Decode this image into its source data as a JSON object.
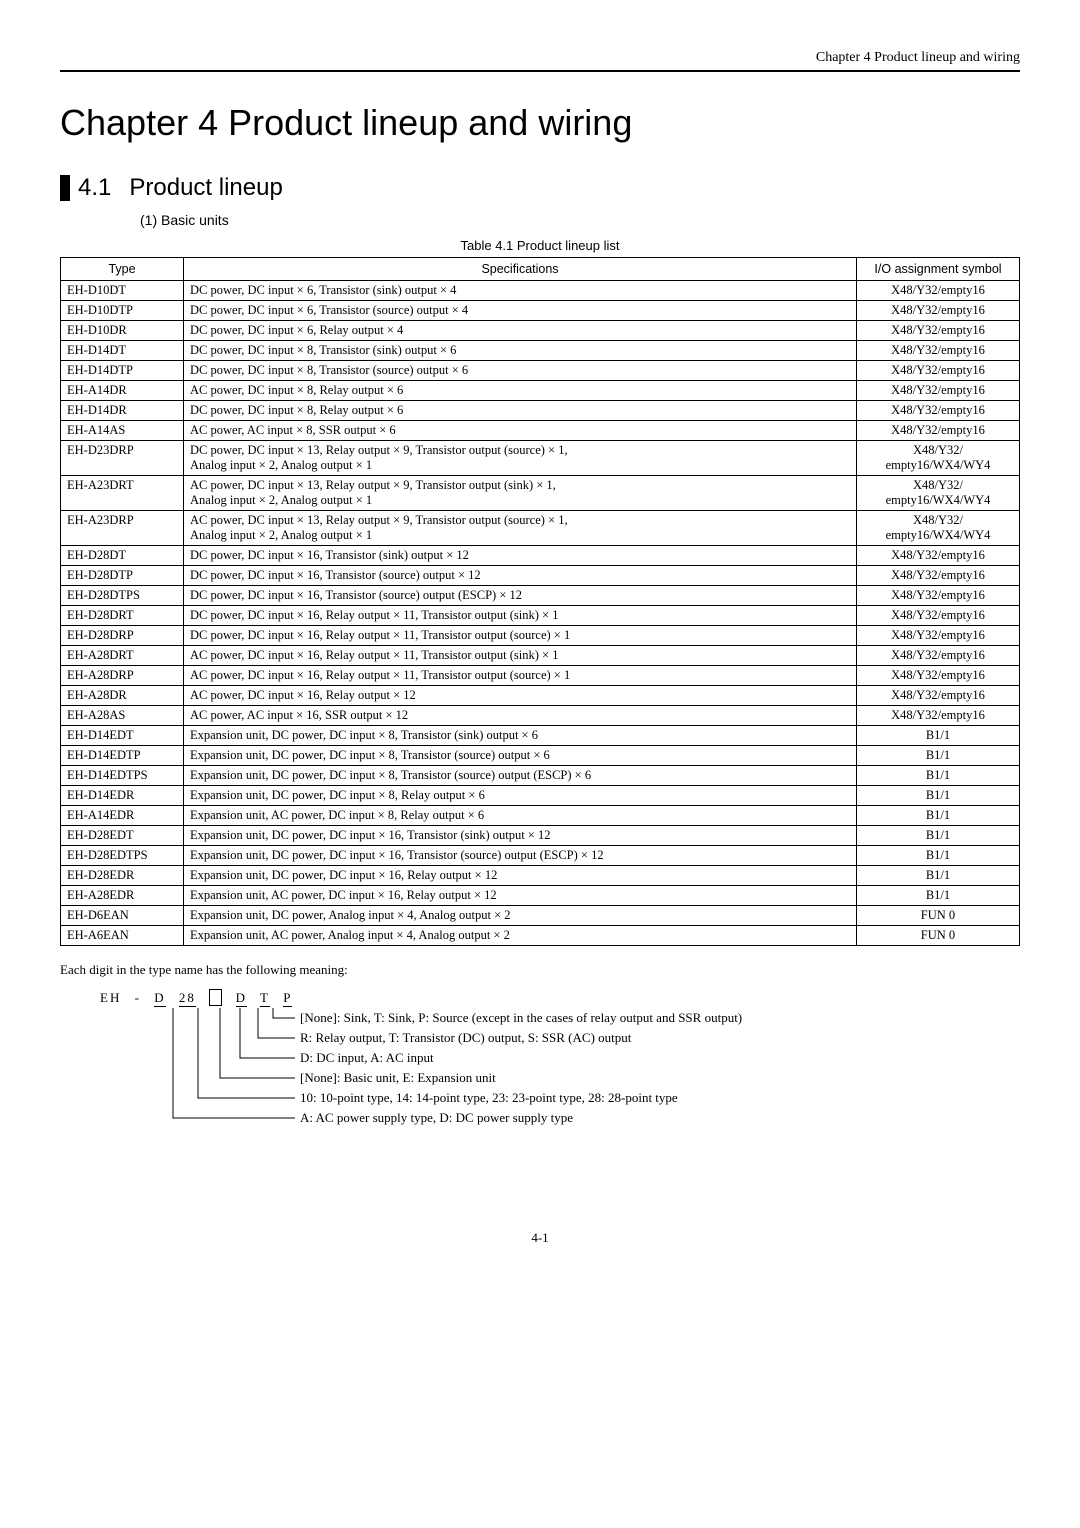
{
  "header": "Chapter 4  Product lineup and wiring",
  "chapter_title": "Chapter 4    Product lineup and wiring",
  "section": {
    "num": "4.1",
    "title": "Product lineup"
  },
  "subsection": "(1)   Basic units",
  "table_caption": "Table 4.1 Product lineup list",
  "table": {
    "headers": [
      "Type",
      "Specifications",
      "I/O assignment symbol"
    ],
    "rows": [
      [
        "EH-D10DT",
        "DC power, DC input × 6, Transistor (sink) output × 4",
        "X48/Y32/empty16"
      ],
      [
        "EH-D10DTP",
        "DC power, DC input × 6, Transistor (source) output × 4",
        "X48/Y32/empty16"
      ],
      [
        "EH-D10DR",
        "DC power, DC input × 6, Relay output × 4",
        "X48/Y32/empty16"
      ],
      [
        "EH-D14DT",
        "DC power, DC input × 8, Transistor (sink) output × 6",
        "X48/Y32/empty16"
      ],
      [
        "EH-D14DTP",
        "DC power, DC input × 8, Transistor (source) output × 6",
        "X48/Y32/empty16"
      ],
      [
        "EH-A14DR",
        "AC power, DC input × 8, Relay output × 6",
        "X48/Y32/empty16"
      ],
      [
        "EH-D14DR",
        "DC power, DC input × 8, Relay output × 6",
        "X48/Y32/empty16"
      ],
      [
        "EH-A14AS",
        "AC power, AC input × 8, SSR output × 6",
        "X48/Y32/empty16"
      ],
      [
        "EH-D23DRP",
        "DC power, DC input × 13, Relay output × 9, Transistor output (source) × 1,\nAnalog input × 2, Analog output × 1",
        "X48/Y32/\nempty16/WX4/WY4"
      ],
      [
        "EH-A23DRT",
        "AC power, DC input × 13, Relay output × 9, Transistor output (sink) × 1,\nAnalog input × 2, Analog output × 1",
        "X48/Y32/\nempty16/WX4/WY4"
      ],
      [
        "EH-A23DRP",
        "AC power, DC input × 13, Relay output × 9, Transistor output (source) × 1,\nAnalog input × 2, Analog output × 1",
        "X48/Y32/\nempty16/WX4/WY4"
      ],
      [
        "EH-D28DT",
        "DC power, DC input × 16, Transistor (sink) output × 12",
        "X48/Y32/empty16"
      ],
      [
        "EH-D28DTP",
        "DC power, DC input × 16, Transistor (source) output × 12",
        "X48/Y32/empty16"
      ],
      [
        "EH-D28DTPS",
        "DC power, DC input × 16, Transistor (source) output (ESCP) × 12",
        "X48/Y32/empty16"
      ],
      [
        "EH-D28DRT",
        "DC power, DC input × 16, Relay output × 11, Transistor output (sink) × 1",
        "X48/Y32/empty16"
      ],
      [
        "EH-D28DRP",
        "DC power, DC input × 16, Relay output × 11, Transistor output (source) × 1",
        "X48/Y32/empty16"
      ],
      [
        "EH-A28DRT",
        "AC power, DC input × 16, Relay output × 11, Transistor output (sink) × 1",
        "X48/Y32/empty16"
      ],
      [
        "EH-A28DRP",
        "AC power, DC input × 16, Relay output × 11, Transistor output (source) × 1",
        "X48/Y32/empty16"
      ],
      [
        "EH-A28DR",
        "AC power, DC input × 16, Relay output × 12",
        "X48/Y32/empty16"
      ],
      [
        "EH-A28AS",
        "AC power, AC input × 16, SSR output × 12",
        "X48/Y32/empty16"
      ],
      [
        "EH-D14EDT",
        "Expansion unit, DC power, DC input × 8, Transistor (sink) output × 6",
        "B1/1"
      ],
      [
        "EH-D14EDTP",
        "Expansion unit, DC power, DC input × 8, Transistor (source) output × 6",
        "B1/1"
      ],
      [
        "EH-D14EDTPS",
        "Expansion unit, DC power, DC input × 8, Transistor (source) output (ESCP) × 6",
        "B1/1"
      ],
      [
        "EH-D14EDR",
        "Expansion unit, DC power, DC input × 8, Relay output × 6",
        "B1/1"
      ],
      [
        "EH-A14EDR",
        "Expansion unit, AC power, DC input × 8, Relay output × 6",
        "B1/1"
      ],
      [
        "EH-D28EDT",
        "Expansion unit, DC power, DC input × 16, Transistor (sink) output × 12",
        "B1/1"
      ],
      [
        "EH-D28EDTPS",
        "Expansion unit, DC power, DC input × 16, Transistor (source) output (ESCP) × 12",
        "B1/1"
      ],
      [
        "EH-D28EDR",
        "Expansion unit, DC power, DC input × 16, Relay output × 12",
        "B1/1"
      ],
      [
        "EH-A28EDR",
        "Expansion unit, AC power, DC input × 16, Relay output × 12",
        "B1/1"
      ],
      [
        "EH-D6EAN",
        "Expansion unit, DC power, Analog input × 4, Analog output × 2",
        "FUN 0"
      ],
      [
        "EH-A6EAN",
        "Expansion unit, AC power, Analog input × 4, Analog output × 2",
        "FUN 0"
      ]
    ]
  },
  "meaning_intro": "Each digit in the type name has the following meaning:",
  "code_parts": {
    "prefix": "EH",
    "dash": "-",
    "p1": "D",
    "p2": "28",
    "p3": "□",
    "p4": "D",
    "p5": "T",
    "p6": "P"
  },
  "legend": [
    "[None]: Sink, T: Sink, P: Source (except in the cases of relay output and SSR output)",
    "R: Relay output, T: Transistor (DC) output, S: SSR (AC) output",
    "D: DC input, A: AC input",
    "[None]: Basic unit, E: Expansion unit",
    "10: 10-point type, 14: 14-point type, 23: 23-point type, 28: 28-point type",
    "A: AC power supply type, D: DC power supply type"
  ],
  "footer": "4-1"
}
